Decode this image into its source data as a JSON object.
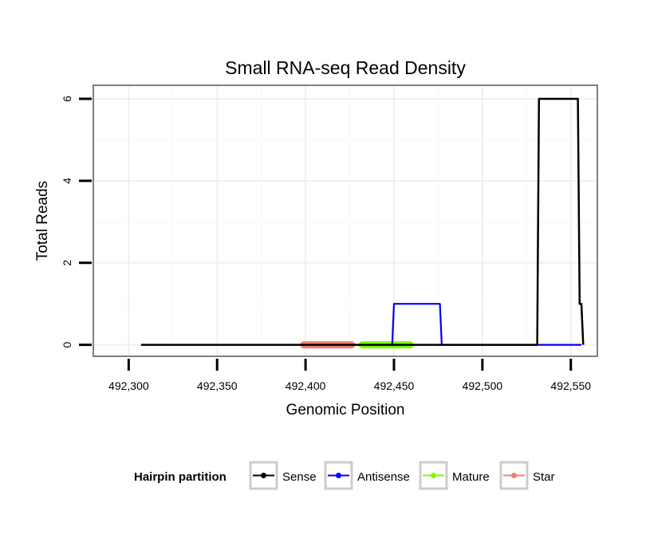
{
  "chart_data": {
    "type": "line",
    "title": "Small RNA-seq Read Density",
    "xlabel": "Genomic Position",
    "ylabel": "Total Reads",
    "xlim": [
      492280,
      492565
    ],
    "ylim": [
      -0.28,
      6.33
    ],
    "xticks": [
      492300,
      492350,
      492400,
      492450,
      492500,
      492550
    ],
    "xtick_labels": [
      "492,300",
      "492,350",
      "492,400",
      "492,450",
      "492,500",
      "492,550"
    ],
    "yticks": [
      0,
      2,
      4,
      6
    ],
    "ytick_labels": [
      "0",
      "2",
      "4",
      "6"
    ],
    "grid": true,
    "legend": {
      "title": "Hairpin partition",
      "position": "bottom",
      "entries": [
        "Sense",
        "Antisense",
        "Mature",
        "Star"
      ]
    },
    "series": [
      {
        "name": "Sense",
        "color": "#000000",
        "points": [
          [
            492307,
            0
          ],
          [
            492531,
            0
          ],
          [
            492532,
            6
          ],
          [
            492554,
            6
          ],
          [
            492555,
            1
          ],
          [
            492556,
            1
          ],
          [
            492557,
            0
          ]
        ]
      },
      {
        "name": "Antisense",
        "color": "#0000ff",
        "points": [
          [
            492449,
            0
          ],
          [
            492450,
            1
          ],
          [
            492476,
            1
          ],
          [
            492477,
            0
          ],
          [
            492531,
            0
          ],
          [
            492532,
            0
          ],
          [
            492556,
            0
          ]
        ]
      },
      {
        "name": "Mature",
        "color": "#7cfc00",
        "points": [
          [
            492432,
            0
          ],
          [
            492459,
            0
          ]
        ]
      },
      {
        "name": "Star",
        "color": "#f08070",
        "points": [
          [
            492399,
            0
          ],
          [
            492426,
            0
          ]
        ]
      }
    ]
  }
}
